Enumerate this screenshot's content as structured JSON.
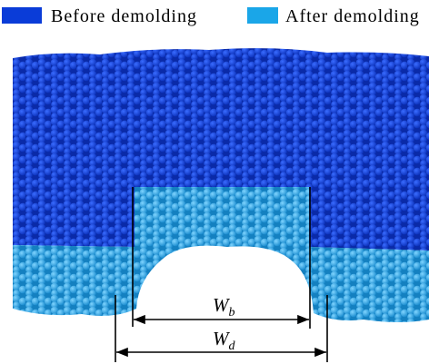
{
  "legend": {
    "items": [
      {
        "label": "Before demolding"
      },
      {
        "label": "After demolding"
      }
    ]
  },
  "dimensions": [
    {
      "symbol": "W",
      "subscript": "b"
    },
    {
      "symbol": "W",
      "subscript": "d"
    }
  ]
}
